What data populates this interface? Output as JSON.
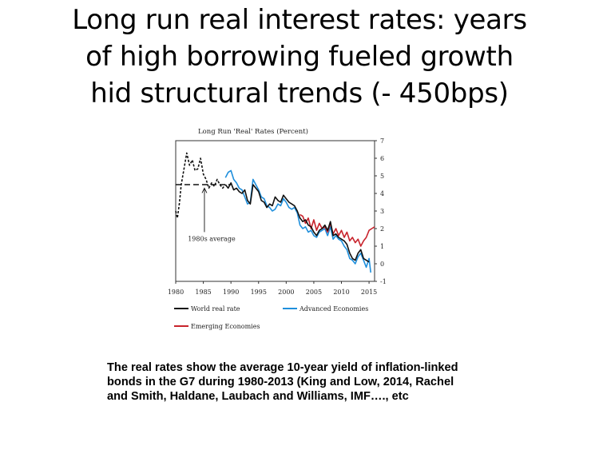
{
  "slide": {
    "title_lines": [
      "Long run real interest rates: years",
      "of high borrowing fueled growth",
      "hid structural trends (- 450bps)"
    ],
    "caption_lines": [
      "The real rates show the average 10-year yield of inflation-linked",
      "bonds in the G7 during 1980-2013 (King and Low, 2014, Rachel",
      "and Smith,  Haldane, Laubach and Williams, IMF…., etc"
    ]
  },
  "chart_data": {
    "type": "line",
    "title": "Long Run 'Real' Rates (Percent)",
    "xlim": [
      1980,
      2016
    ],
    "ylim": [
      -1,
      7
    ],
    "x_ticks": [
      1980,
      1985,
      1990,
      1995,
      2000,
      2005,
      2010,
      2015
    ],
    "y_ticks": [
      -1,
      0,
      1,
      2,
      3,
      4,
      5,
      6,
      7
    ],
    "y_axis_side": "right",
    "grid": false,
    "legend_position": "bottom",
    "reference_line": {
      "label": "1980s average",
      "value": 4.5,
      "x_range": [
        1980,
        1990
      ]
    },
    "series": [
      {
        "name": "World real rate",
        "color": "#111111",
        "style": "solid",
        "points": [
          [
            1989,
            4.5
          ],
          [
            1989.5,
            4.3
          ],
          [
            1990,
            4.6
          ],
          [
            1990.5,
            4.2
          ],
          [
            1991,
            4.3
          ],
          [
            1991.5,
            4.1
          ],
          [
            1992,
            4.0
          ],
          [
            1992.5,
            4.2
          ],
          [
            1993,
            3.6
          ],
          [
            1993.5,
            3.4
          ],
          [
            1994,
            4.5
          ],
          [
            1994.5,
            4.3
          ],
          [
            1995,
            4.1
          ],
          [
            1995.5,
            3.6
          ],
          [
            1996,
            3.5
          ],
          [
            1996.5,
            3.2
          ],
          [
            1997,
            3.4
          ],
          [
            1997.5,
            3.3
          ],
          [
            1998,
            3.8
          ],
          [
            1998.5,
            3.6
          ],
          [
            1999,
            3.5
          ],
          [
            1999.5,
            3.9
          ],
          [
            2000,
            3.7
          ],
          [
            2000.5,
            3.5
          ],
          [
            2001,
            3.4
          ],
          [
            2001.5,
            3.3
          ],
          [
            2002,
            3.0
          ],
          [
            2002.5,
            2.6
          ],
          [
            2003,
            2.4
          ],
          [
            2003.5,
            2.5
          ],
          [
            2004,
            2.2
          ],
          [
            2004.5,
            2.1
          ],
          [
            2005,
            1.8
          ],
          [
            2005.5,
            1.6
          ],
          [
            2006,
            1.9
          ],
          [
            2006.5,
            2.0
          ],
          [
            2007,
            2.2
          ],
          [
            2007.5,
            1.9
          ],
          [
            2008,
            2.4
          ],
          [
            2008.5,
            1.6
          ],
          [
            2009,
            1.7
          ],
          [
            2009.5,
            1.5
          ],
          [
            2010,
            1.4
          ],
          [
            2010.5,
            1.3
          ],
          [
            2011,
            1.1
          ],
          [
            2011.5,
            0.6
          ],
          [
            2012,
            0.3
          ],
          [
            2012.5,
            0.2
          ],
          [
            2013,
            0.6
          ],
          [
            2013.5,
            0.8
          ],
          [
            2014,
            0.3
          ],
          [
            2014.5,
            0.2
          ],
          [
            2015,
            0.1
          ]
        ]
      },
      {
        "name": "",
        "color": "#111111",
        "style": "dashed",
        "points": [
          [
            1980,
            3.0
          ],
          [
            1980.3,
            2.6
          ],
          [
            1980.7,
            3.5
          ],
          [
            1981,
            4.5
          ],
          [
            1981.5,
            5.4
          ],
          [
            1982,
            6.3
          ],
          [
            1982.5,
            5.6
          ],
          [
            1983,
            5.9
          ],
          [
            1983.5,
            5.3
          ],
          [
            1984,
            5.4
          ],
          [
            1984.5,
            6.0
          ],
          [
            1985,
            5.1
          ],
          [
            1985.5,
            4.8
          ],
          [
            1986,
            4.3
          ],
          [
            1986.5,
            4.6
          ],
          [
            1987,
            4.4
          ],
          [
            1987.5,
            4.8
          ],
          [
            1988,
            4.5
          ],
          [
            1988.5,
            4.3
          ],
          [
            1989,
            4.5
          ]
        ]
      },
      {
        "name": "Advanced Economies",
        "color": "#1f8fdc",
        "style": "solid",
        "points": [
          [
            1989,
            4.9
          ],
          [
            1989.5,
            5.2
          ],
          [
            1990,
            5.3
          ],
          [
            1990.5,
            4.8
          ],
          [
            1991,
            4.6
          ],
          [
            1991.5,
            4.3
          ],
          [
            1992,
            4.2
          ],
          [
            1992.5,
            3.8
          ],
          [
            1993,
            3.4
          ],
          [
            1993.5,
            3.5
          ],
          [
            1994,
            4.8
          ],
          [
            1994.5,
            4.5
          ],
          [
            1995,
            4.2
          ],
          [
            1995.5,
            3.8
          ],
          [
            1996,
            3.7
          ],
          [
            1996.5,
            3.3
          ],
          [
            1997,
            3.2
          ],
          [
            1997.5,
            3.0
          ],
          [
            1998,
            3.1
          ],
          [
            1998.5,
            3.4
          ],
          [
            1999,
            3.3
          ],
          [
            1999.5,
            3.7
          ],
          [
            2000,
            3.5
          ],
          [
            2000.5,
            3.2
          ],
          [
            2001,
            3.1
          ],
          [
            2001.5,
            3.2
          ],
          [
            2002,
            2.9
          ],
          [
            2002.5,
            2.2
          ],
          [
            2003,
            2.0
          ],
          [
            2003.5,
            2.1
          ],
          [
            2004,
            1.8
          ],
          [
            2004.5,
            1.9
          ],
          [
            2005,
            1.6
          ],
          [
            2005.5,
            1.5
          ],
          [
            2006,
            1.8
          ],
          [
            2006.5,
            1.9
          ],
          [
            2007,
            2.0
          ],
          [
            2007.5,
            1.6
          ],
          [
            2008,
            2.1
          ],
          [
            2008.5,
            1.4
          ],
          [
            2009,
            1.6
          ],
          [
            2009.5,
            1.4
          ],
          [
            2010,
            1.3
          ],
          [
            2010.5,
            1.0
          ],
          [
            2011,
            0.8
          ],
          [
            2011.5,
            0.3
          ],
          [
            2012,
            0.2
          ],
          [
            2012.5,
            0.0
          ],
          [
            2013,
            0.4
          ],
          [
            2013.5,
            0.6
          ],
          [
            2014,
            0.2
          ],
          [
            2014.5,
            -0.2
          ],
          [
            2015,
            0.3
          ],
          [
            2015.3,
            -0.5
          ]
        ]
      },
      {
        "name": "Emerging Economies",
        "color": "#c8232c",
        "style": "solid",
        "points": [
          [
            2002.5,
            2.8
          ],
          [
            2003,
            2.7
          ],
          [
            2003.5,
            2.3
          ],
          [
            2004,
            2.6
          ],
          [
            2004.5,
            2.0
          ],
          [
            2005,
            2.5
          ],
          [
            2005.5,
            1.9
          ],
          [
            2006,
            2.3
          ],
          [
            2006.5,
            2.0
          ],
          [
            2007,
            2.1
          ],
          [
            2007.5,
            1.8
          ],
          [
            2008,
            2.3
          ],
          [
            2008.5,
            1.7
          ],
          [
            2009,
            2.0
          ],
          [
            2009.5,
            1.6
          ],
          [
            2010,
            1.9
          ],
          [
            2010.5,
            1.5
          ],
          [
            2011,
            1.8
          ],
          [
            2011.5,
            1.3
          ],
          [
            2012,
            1.5
          ],
          [
            2012.5,
            1.2
          ],
          [
            2013,
            1.4
          ],
          [
            2013.5,
            1.0
          ],
          [
            2014,
            1.3
          ],
          [
            2014.5,
            1.5
          ],
          [
            2015,
            1.9
          ],
          [
            2015.5,
            2.0
          ],
          [
            2016,
            2.1
          ]
        ]
      }
    ]
  }
}
